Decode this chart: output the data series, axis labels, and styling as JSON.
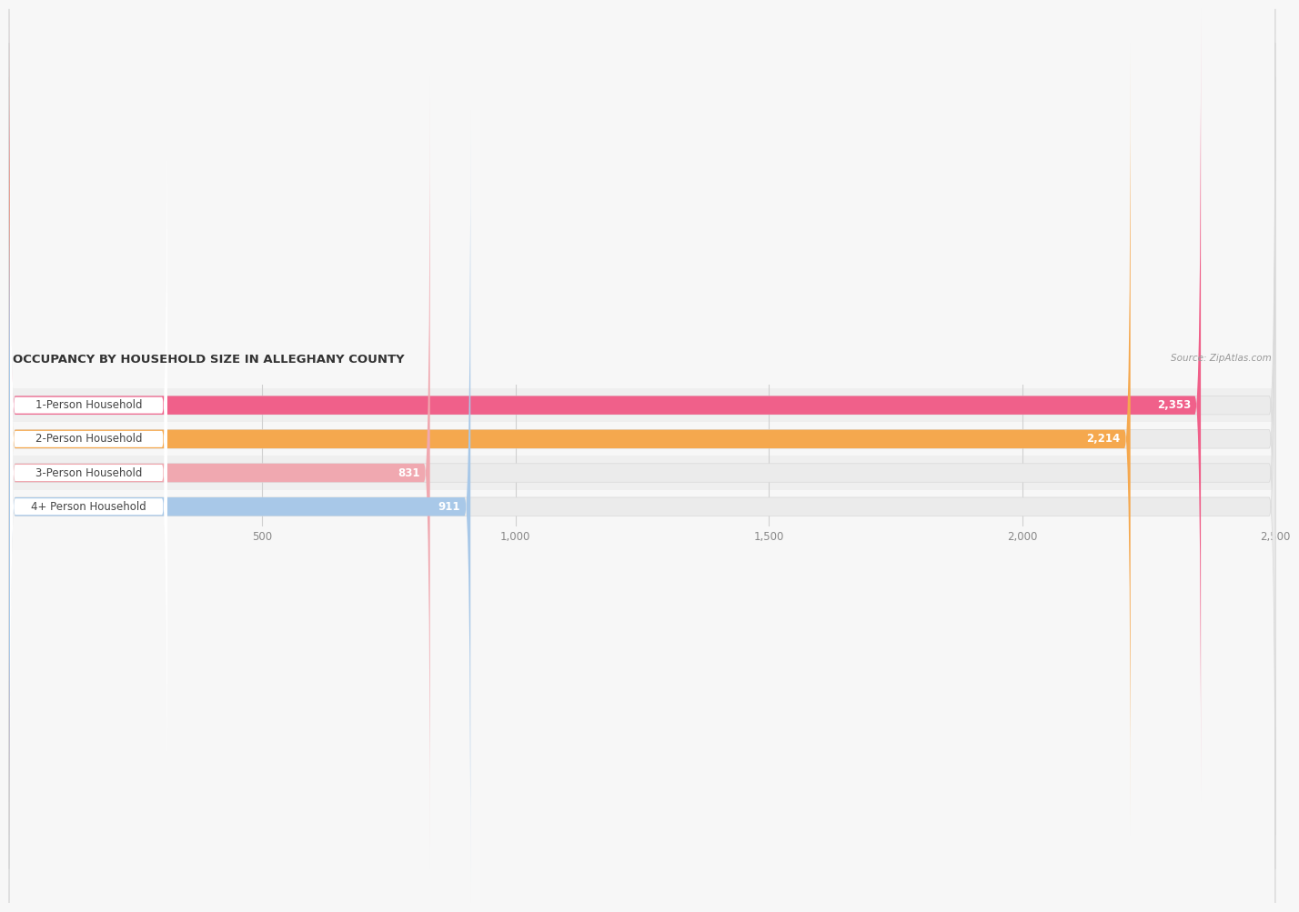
{
  "title": "OCCUPANCY BY HOUSEHOLD SIZE IN ALLEGHANY COUNTY",
  "source": "Source: ZipAtlas.com",
  "categories": [
    "1-Person Household",
    "2-Person Household",
    "3-Person Household",
    "4+ Person Household"
  ],
  "values": [
    2353,
    2214,
    831,
    911
  ],
  "bar_colors": [
    "#f0608a",
    "#f5a84e",
    "#f0a8b0",
    "#a8c8e8"
  ],
  "label_pill_colors": [
    "#f0608a",
    "#f5a84e",
    "#f0a8b0",
    "#a8c8e8"
  ],
  "bar_bg_color": "#ebebeb",
  "xlim": [
    0,
    2500
  ],
  "xticks": [
    500,
    1000,
    1500,
    2000,
    2500
  ],
  "xtick_labels": [
    "500",
    "1,000",
    "1,500",
    "2,000",
    "2,500"
  ],
  "label_fontsize": 8.5,
  "value_fontsize": 8.5,
  "title_fontsize": 9.5,
  "source_fontsize": 7.5,
  "bar_height": 0.55,
  "background_color": "#f7f7f7",
  "row_bg_colors": [
    "#f0f0f0",
    "#f7f7f7"
  ]
}
